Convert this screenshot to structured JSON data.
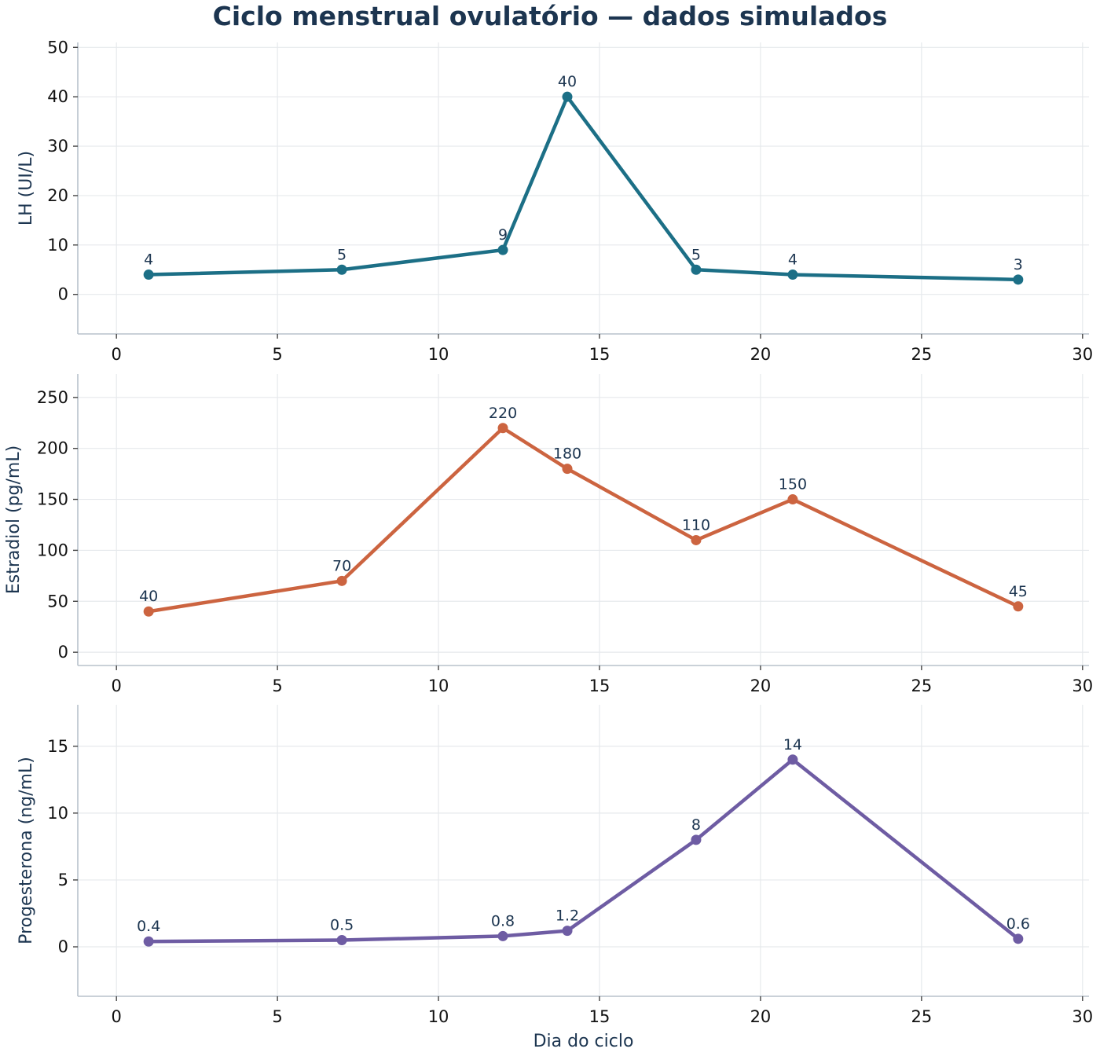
{
  "title": "Ciclo menstrual ovulatório — dados simulados",
  "chart_data": [
    {
      "type": "line",
      "title": "",
      "xlabel": "",
      "ylabel": "LH (UI/L)",
      "xlim": [
        -1.2,
        30.2
      ],
      "ylim": [
        -8,
        51
      ],
      "xticks": [
        0,
        5,
        10,
        15,
        20,
        25,
        30
      ],
      "yticks": [
        0,
        10,
        20,
        30,
        40,
        50
      ],
      "grid": true,
      "color": "#1c6f86",
      "x": [
        1,
        7,
        12,
        14,
        18,
        21,
        28
      ],
      "y": [
        4,
        5,
        9,
        40,
        5,
        4,
        3
      ],
      "labels": [
        "4",
        "5",
        "9",
        "40",
        "5",
        "4",
        "3"
      ]
    },
    {
      "type": "line",
      "title": "",
      "xlabel": "",
      "ylabel": "Estradiol (pg/mL)",
      "xlim": [
        -1.2,
        30.2
      ],
      "ylim": [
        -13,
        273
      ],
      "xticks": [
        0,
        5,
        10,
        15,
        20,
        25,
        30
      ],
      "yticks": [
        0,
        50,
        100,
        150,
        200,
        250
      ],
      "grid": true,
      "color": "#cc6440",
      "x": [
        1,
        7,
        12,
        14,
        18,
        21,
        28
      ],
      "y": [
        40,
        70,
        220,
        180,
        110,
        150,
        45
      ],
      "labels": [
        "40",
        "70",
        "220",
        "180",
        "110",
        "150",
        "45"
      ]
    },
    {
      "type": "line",
      "title": "",
      "xlabel": "Dia do ciclo",
      "ylabel": "Progesterona (ng/mL)",
      "xlim": [
        -1.2,
        30.2
      ],
      "ylim": [
        -3.7,
        18.1
      ],
      "xticks": [
        0,
        5,
        10,
        15,
        20,
        25,
        30
      ],
      "yticks": [
        0,
        5,
        10,
        15
      ],
      "grid": true,
      "color": "#6e5ca3",
      "x": [
        1,
        7,
        12,
        14,
        18,
        21,
        28
      ],
      "y": [
        0.4,
        0.5,
        0.8,
        1.2,
        8,
        14,
        0.6
      ],
      "labels": [
        "0.4",
        "0.5",
        "0.8",
        "1.2",
        "8",
        "14",
        "0.6"
      ]
    }
  ]
}
